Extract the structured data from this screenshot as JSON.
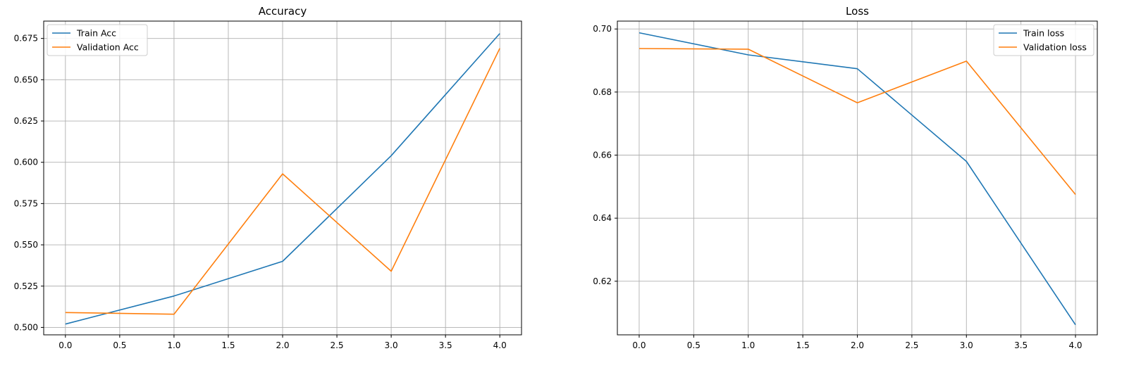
{
  "colors": {
    "train": "#1f77b4",
    "validation": "#ff7f0e"
  },
  "chart_data": [
    {
      "type": "line",
      "title": "Accuracy",
      "xlabel": "",
      "ylabel": "",
      "x": [
        0,
        1,
        2,
        3,
        4
      ],
      "xlim": [
        -0.2,
        4.2
      ],
      "ylim": [
        0.4955,
        0.6855
      ],
      "xticks": [
        "0.0",
        "0.5",
        "1.0",
        "1.5",
        "2.0",
        "2.5",
        "3.0",
        "3.5",
        "4.0"
      ],
      "xtick_values": [
        0,
        0.5,
        1,
        1.5,
        2,
        2.5,
        3,
        3.5,
        4
      ],
      "yticks": [
        "0.500",
        "0.525",
        "0.550",
        "0.575",
        "0.600",
        "0.625",
        "0.650",
        "0.675"
      ],
      "ytick_values": [
        0.5,
        0.525,
        0.55,
        0.575,
        0.6,
        0.625,
        0.65,
        0.675
      ],
      "grid": true,
      "legend": "upper-left",
      "series": [
        {
          "name": "Train Acc",
          "color_key": "train",
          "values": [
            0.502,
            0.519,
            0.54,
            0.604,
            0.678
          ]
        },
        {
          "name": "Validation Acc",
          "color_key": "validation",
          "values": [
            0.509,
            0.508,
            0.593,
            0.534,
            0.669
          ]
        }
      ]
    },
    {
      "type": "line",
      "title": "Loss",
      "xlabel": "",
      "ylabel": "",
      "x": [
        0,
        1,
        2,
        3,
        4
      ],
      "xlim": [
        -0.2,
        4.2
      ],
      "ylim": [
        0.603,
        0.7025
      ],
      "xticks": [
        "0.0",
        "0.5",
        "1.0",
        "1.5",
        "2.0",
        "2.5",
        "3.0",
        "3.5",
        "4.0"
      ],
      "xtick_values": [
        0,
        0.5,
        1,
        1.5,
        2,
        2.5,
        3,
        3.5,
        4
      ],
      "yticks": [
        "0.62",
        "0.64",
        "0.66",
        "0.68",
        "0.70"
      ],
      "ytick_values": [
        0.62,
        0.64,
        0.66,
        0.68,
        0.7
      ],
      "grid": true,
      "legend": "upper-right",
      "series": [
        {
          "name": "Train loss",
          "color_key": "train",
          "values": [
            0.6988,
            0.6918,
            0.6874,
            0.658,
            0.6062
          ]
        },
        {
          "name": "Validation loss",
          "color_key": "validation",
          "values": [
            0.6938,
            0.6936,
            0.6766,
            0.6898,
            0.6475
          ]
        }
      ]
    }
  ]
}
